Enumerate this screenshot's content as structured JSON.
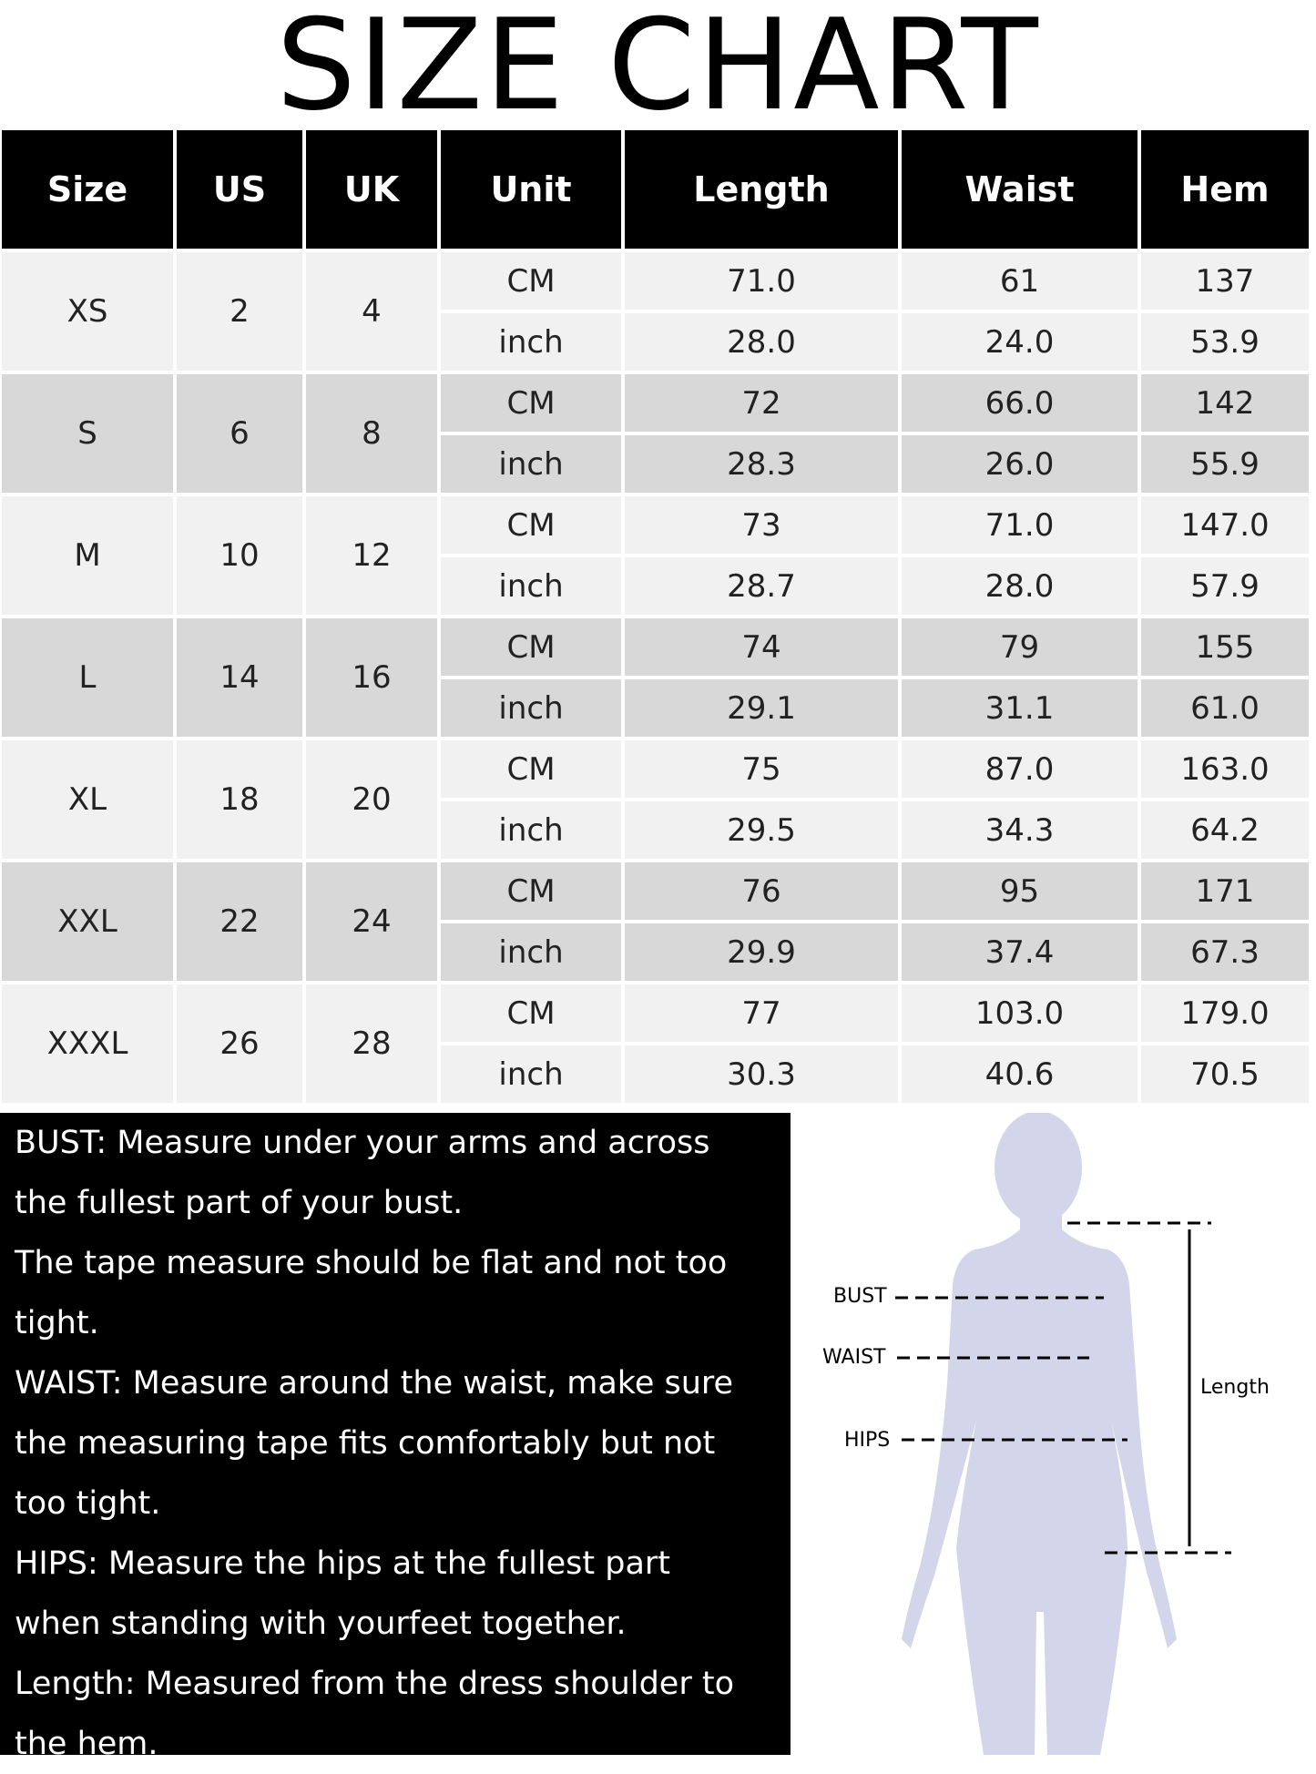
{
  "title": "SIZE CHART",
  "table": {
    "headers": [
      "Size",
      "US",
      "UK",
      "Unit",
      "Length",
      "Waist",
      "Hem"
    ],
    "rows": [
      {
        "size": "XS",
        "us": "2",
        "uk": "4",
        "cm": [
          "71.0",
          "61",
          "137"
        ],
        "inch": [
          "28.0",
          "24.0",
          "53.9"
        ]
      },
      {
        "size": "S",
        "us": "6",
        "uk": "8",
        "cm": [
          "72",
          "66.0",
          "142"
        ],
        "inch": [
          "28.3",
          "26.0",
          "55.9"
        ]
      },
      {
        "size": "M",
        "us": "10",
        "uk": "12",
        "cm": [
          "73",
          "71.0",
          "147.0"
        ],
        "inch": [
          "28.7",
          "28.0",
          "57.9"
        ]
      },
      {
        "size": "L",
        "us": "14",
        "uk": "16",
        "cm": [
          "74",
          "79",
          "155"
        ],
        "inch": [
          "29.1",
          "31.1",
          "61.0"
        ]
      },
      {
        "size": "XL",
        "us": "18",
        "uk": "20",
        "cm": [
          "75",
          "87.0",
          "163.0"
        ],
        "inch": [
          "29.5",
          "34.3",
          "64.2"
        ]
      },
      {
        "size": "XXL",
        "us": "22",
        "uk": "24",
        "cm": [
          "76",
          "95",
          "171"
        ],
        "inch": [
          "29.9",
          "37.4",
          "67.3"
        ]
      },
      {
        "size": "XXXL",
        "us": "26",
        "uk": "28",
        "cm": [
          "77",
          "103.0",
          "179.0"
        ],
        "inch": [
          "30.3",
          "40.6",
          "70.5"
        ]
      }
    ],
    "unit_cm": "CM",
    "unit_inch": "inch",
    "row_colors": [
      "#f1f1f1",
      "#d8d8d8"
    ]
  },
  "notes": [
    "BUST: Measure under your arms and across",
    "the fullest part of your bust.",
    "The tape measure should be flat and not too",
    "tight.",
    "WAIST: Measure around the waist, make sure",
    "the measuring tape fits comfortably but not",
    "too tight.",
    "HIPS: Measure the hips at the fullest part",
    "when standing with yourfeet together.",
    "Length: Measured from the dress shoulder to",
    "the hem."
  ],
  "figure": {
    "bust": "BUST",
    "waist": "WAIST",
    "hips": "HIPS",
    "length": "Length",
    "silhouette_color": "#d3d6ea"
  }
}
